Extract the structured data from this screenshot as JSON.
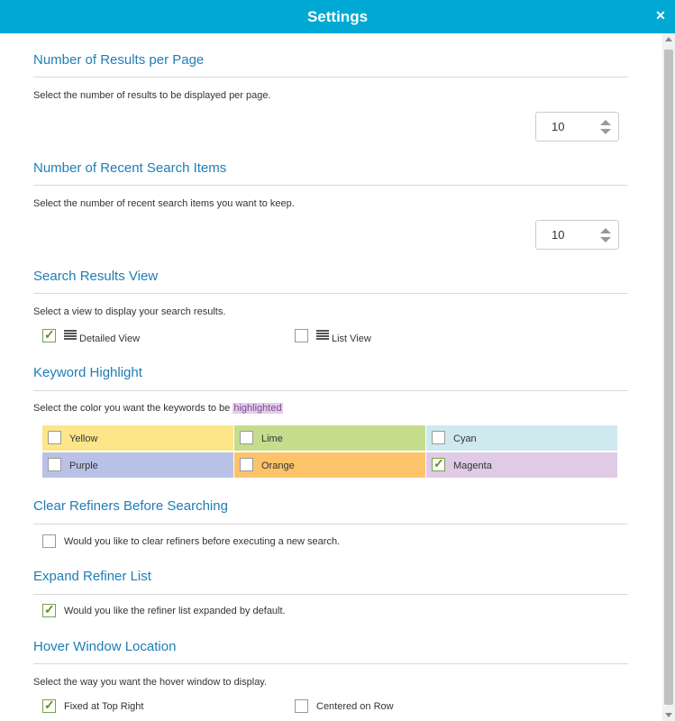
{
  "dialog": {
    "title": "Settings"
  },
  "results_per_page": {
    "title": "Number of Results per Page",
    "description": "Select the number of results to be displayed per page.",
    "value": "10"
  },
  "recent_search": {
    "title": "Number of Recent Search Items",
    "description": "Select the number of recent search items you want to keep.",
    "value": "10"
  },
  "results_view": {
    "title": "Search Results View",
    "description": "Select a view to display your search results.",
    "options": [
      {
        "label": "Detailed View",
        "checked": true
      },
      {
        "label": "List View",
        "checked": false
      }
    ]
  },
  "keyword_highlight": {
    "title": "Keyword Highlight",
    "description_prefix": "Select the color you want the keywords to be ",
    "description_highlight": "highlighted",
    "colors": [
      {
        "label": "Yellow",
        "color": "#fde68a",
        "checked": false
      },
      {
        "label": "Lime",
        "color": "#c6dd8e",
        "checked": false
      },
      {
        "label": "Cyan",
        "color": "#cfeaee",
        "checked": false
      },
      {
        "label": "Purple",
        "color": "#b9c2e6",
        "checked": false
      },
      {
        "label": "Orange",
        "color": "#fdc36b",
        "checked": false
      },
      {
        "label": "Magenta",
        "color": "#dfcbe6",
        "checked": true
      }
    ]
  },
  "clear_refiners": {
    "title": "Clear Refiners Before Searching",
    "label": "Would you like to clear refiners before executing a new search.",
    "checked": false
  },
  "expand_refiner": {
    "title": "Expand Refiner List",
    "label": "Would you like the refiner list expanded by default.",
    "checked": true
  },
  "hover_window": {
    "title": "Hover Window Location",
    "description": "Select the way you want the hover window to display.",
    "options": [
      {
        "label": "Fixed at Top Right",
        "checked": true
      },
      {
        "label": "Centered on Row",
        "checked": false
      }
    ]
  },
  "theme": {
    "accent": "#00a9d4",
    "heading": "#1f7db5",
    "check": "#5c8f2c"
  }
}
